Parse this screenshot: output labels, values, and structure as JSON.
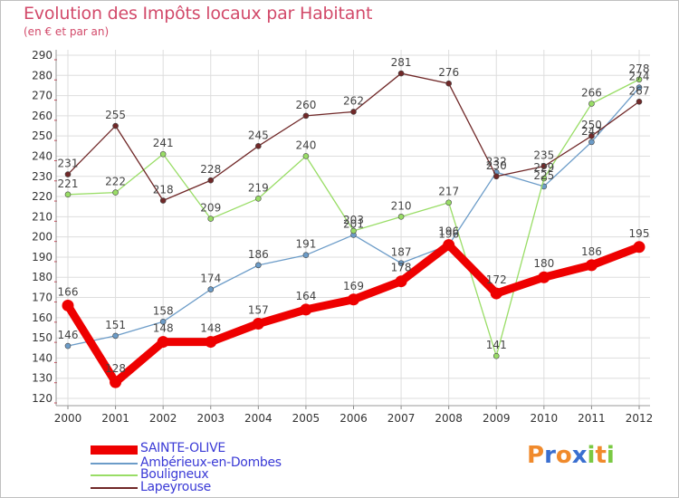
{
  "chart_data": {
    "type": "line",
    "title": "Evolution des Impôts locaux par Habitant",
    "subtitle": "(en € et par an)",
    "xlabel": "",
    "ylabel": "",
    "ylim": [
      120,
      290
    ],
    "ytick_step": 10,
    "grid": true,
    "legend_position": "bottom-left",
    "x": [
      "2000",
      "2001",
      "2002",
      "2003",
      "2004",
      "2005",
      "2006",
      "2007",
      "2008",
      "2009",
      "2010",
      "2011",
      "2012"
    ],
    "series": [
      {
        "name": "SAINTE-OLIVE",
        "color": "#ee0000",
        "emphasis": true,
        "values": [
          166,
          128,
          148,
          148,
          157,
          164,
          169,
          178,
          196,
          172,
          180,
          186,
          195
        ]
      },
      {
        "name": "Ambérieux-en-Dombes",
        "color": "#6c9cc8",
        "emphasis": false,
        "values": [
          146,
          151,
          158,
          174,
          186,
          191,
          201,
          187,
          196,
          232,
          225,
          247,
          274
        ]
      },
      {
        "name": "Bouligneux",
        "color": "#99dd66",
        "emphasis": false,
        "values": [
          221,
          222,
          241,
          209,
          219,
          240,
          203,
          210,
          217,
          141,
          229,
          266,
          278
        ]
      },
      {
        "name": "Lapeyrouse",
        "color": "#702828",
        "emphasis": false,
        "values": [
          231,
          255,
          218,
          228,
          245,
          260,
          262,
          281,
          276,
          230,
          235,
          250,
          267
        ]
      }
    ]
  },
  "brand": {
    "letters": [
      "P",
      "r",
      "o",
      "x",
      "i",
      "t",
      "i"
    ],
    "colors": [
      "#f08a2c",
      "#3a6fd0",
      "#f08a2c",
      "#3a6fd0",
      "#7ac943",
      "#f08a2c",
      "#7ac943"
    ]
  }
}
